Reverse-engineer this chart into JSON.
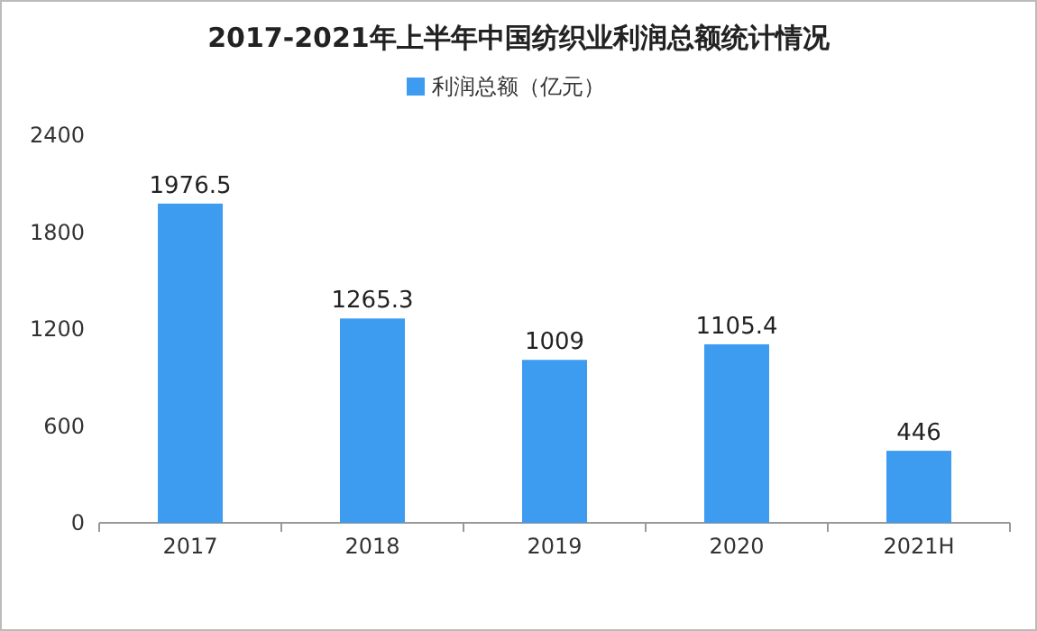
{
  "chart_data": {
    "type": "bar",
    "title": "2017-2021年上半年中国纺织业利润总额统计情况",
    "categories": [
      "2017",
      "2018",
      "2019",
      "2020",
      "2021H"
    ],
    "series": [
      {
        "name": "利润总额（亿元）",
        "color": "#3d9cf0",
        "values": [
          1976.5,
          1265.3,
          1009,
          1105.4,
          446
        ]
      }
    ],
    "ylim": [
      0,
      2400
    ],
    "yticks": [
      0,
      600,
      1200,
      1800,
      2400
    ],
    "data_labels": true,
    "legend": "top"
  }
}
